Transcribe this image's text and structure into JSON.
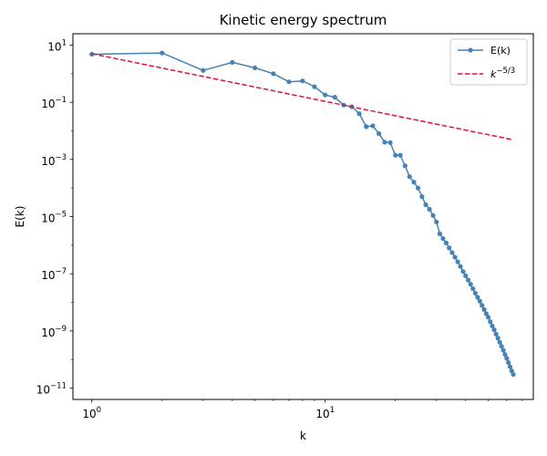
{
  "chart_data": {
    "type": "line",
    "title": "Kinetic energy spectrum",
    "xlabel": "k",
    "ylabel": "E(k)",
    "xscale": "log",
    "yscale": "log",
    "xlim": [
      0.83,
      78
    ],
    "ylim": [
      4e-12,
      25
    ],
    "x_ticks": [
      {
        "base": "10",
        "exp": "0",
        "value": 1
      },
      {
        "base": "10",
        "exp": "1",
        "value": 10
      }
    ],
    "y_ticks": [
      {
        "base": "10",
        "exp": "1",
        "value": 10
      },
      {
        "base": "10",
        "exp": "−1",
        "value": 0.1
      },
      {
        "base": "10",
        "exp": "−3",
        "value": 0.001
      },
      {
        "base": "10",
        "exp": "−5",
        "value": 1e-05
      },
      {
        "base": "10",
        "exp": "−7",
        "value": 1e-07
      },
      {
        "base": "10",
        "exp": "−9",
        "value": 1e-09
      },
      {
        "base": "10",
        "exp": "−11",
        "value": 1e-11
      }
    ],
    "grid": false,
    "legend_position": "top-right",
    "legend": [
      {
        "label": "E(k)",
        "color": "#4682b4",
        "style": "solid-marker"
      },
      {
        "label_base": "k",
        "label_exp": "−5/3",
        "color": "#dc143c",
        "style": "dashed"
      }
    ],
    "series": [
      {
        "name": "E(k)",
        "color": "#4682b4",
        "x": [
          1,
          2,
          3,
          4,
          5,
          6,
          7,
          8,
          9,
          10,
          11,
          12,
          13,
          14,
          15,
          16,
          17,
          18,
          19,
          20,
          21,
          22,
          23,
          24,
          25,
          26,
          27,
          28,
          29,
          30,
          31,
          32,
          33,
          34,
          35,
          36,
          37,
          38,
          39,
          40,
          41,
          42,
          43,
          44,
          45,
          46,
          47,
          48,
          49,
          50,
          51,
          52,
          53,
          54,
          55,
          56,
          57,
          58,
          59,
          60,
          61,
          62,
          63,
          64
        ],
        "y": [
          4.8,
          5.3,
          1.3,
          2.5,
          1.6,
          1.0,
          0.52,
          0.56,
          0.35,
          0.18,
          0.15,
          0.08,
          0.07,
          0.04,
          0.014,
          0.015,
          0.008,
          0.004,
          0.0039,
          0.0014,
          0.0014,
          0.0006,
          0.00025,
          0.00016,
          0.0001,
          5e-05,
          2.6e-05,
          1.8e-05,
          1.1e-05,
          6.5e-06,
          2.5e-06,
          1.7e-06,
          1.2e-06,
          8e-07,
          5.5e-07,
          3.8e-07,
          2.6e-07,
          1.8e-07,
          1.2e-07,
          8.5e-08,
          6e-08,
          4.3e-08,
          3e-08,
          2.1e-08,
          1.5e-08,
          1.1e-08,
          7.8e-09,
          5.6e-09,
          4e-09,
          3e-09,
          2.1e-09,
          1.5e-09,
          1.1e-09,
          7.8e-10,
          5.6e-10,
          4e-10,
          2.9e-10,
          2.1e-10,
          1.5e-10,
          1.1e-10,
          7.8e-11,
          5.6e-11,
          4e-11,
          3e-11
        ]
      },
      {
        "name": "k^-5/3",
        "color": "#dc143c",
        "dashed": true,
        "x": [
          1,
          64
        ],
        "y": [
          5.0,
          0.00486
        ]
      }
    ]
  }
}
